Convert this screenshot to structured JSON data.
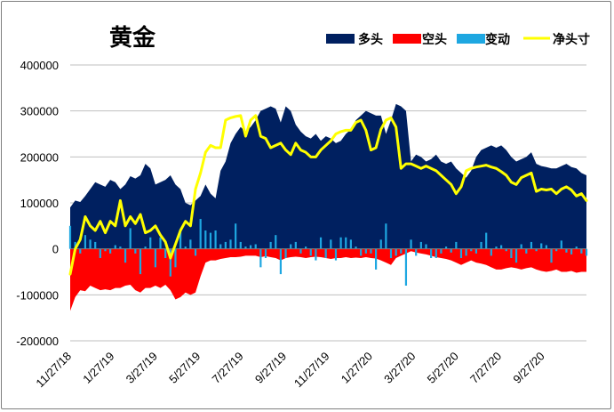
{
  "chart_data": {
    "type": "area",
    "title": "黄金",
    "legend": [
      {
        "name": "多头",
        "color": "#002060"
      },
      {
        "name": "空头",
        "color": "#ff0000"
      },
      {
        "name": "变动",
        "color": "#1ea7e1"
      },
      {
        "name": "净头寸",
        "color": "#ffff00"
      }
    ],
    "legend_placement": "top-right",
    "ylim": [
      -200000,
      400000
    ],
    "yticks": [
      "400000",
      "300000",
      "200000",
      "100000",
      "0",
      "-100000",
      "-200000"
    ],
    "ytick_values": [
      400000,
      300000,
      200000,
      100000,
      0,
      -100000,
      -200000
    ],
    "xticks": [
      "11/27/18",
      "1/27/19",
      "3/27/19",
      "5/27/19",
      "7/27/19",
      "9/27/19",
      "11/27/19",
      "1/27/20",
      "3/27/20",
      "5/27/20",
      "7/27/20",
      "9/27/20"
    ],
    "grid": true,
    "x": [
      "11/27/18",
      "12/4/18",
      "12/11/18",
      "12/18/18",
      "12/25/18",
      "1/1/19",
      "1/8/19",
      "1/15/19",
      "1/22/19",
      "1/29/19",
      "2/5/19",
      "2/12/19",
      "2/19/19",
      "2/26/19",
      "3/5/19",
      "3/12/19",
      "3/19/19",
      "3/26/19",
      "4/2/19",
      "4/9/19",
      "4/16/19",
      "4/23/19",
      "4/30/19",
      "5/7/19",
      "5/14/19",
      "5/21/19",
      "5/28/19",
      "6/4/19",
      "6/11/19",
      "6/18/19",
      "6/25/19",
      "7/2/19",
      "7/9/19",
      "7/16/19",
      "7/23/19",
      "7/30/19",
      "8/6/19",
      "8/13/19",
      "8/20/19",
      "8/27/19",
      "9/3/19",
      "9/10/19",
      "9/17/19",
      "9/24/19",
      "10/1/19",
      "10/8/19",
      "10/15/19",
      "10/22/19",
      "10/29/19",
      "11/5/19",
      "11/12/19",
      "11/19/19",
      "11/26/19",
      "12/3/19",
      "12/10/19",
      "12/17/19",
      "12/24/19",
      "12/31/19",
      "1/7/20",
      "1/14/20",
      "1/21/20",
      "1/28/20",
      "2/4/20",
      "2/11/20",
      "2/18/20",
      "2/25/20",
      "3/3/20",
      "3/10/20",
      "3/17/20",
      "3/24/20",
      "3/31/20",
      "4/7/20",
      "4/14/20",
      "4/21/20",
      "4/28/20",
      "5/5/20",
      "5/12/20",
      "5/19/20",
      "5/26/20",
      "6/2/20",
      "6/9/20",
      "6/16/20",
      "6/23/20",
      "6/30/20",
      "7/7/20",
      "7/14/20",
      "7/21/20",
      "7/28/20",
      "8/4/20",
      "8/11/20",
      "8/18/20",
      "8/25/20",
      "9/1/20",
      "9/8/20",
      "9/15/20",
      "9/22/20",
      "9/29/20",
      "10/6/20",
      "10/13/20",
      "10/20/20",
      "10/27/20",
      "11/3/20",
      "11/10/20",
      "11/17/20"
    ],
    "series": [
      {
        "name": "多头",
        "values": [
          90000,
          105000,
          102000,
          115000,
          130000,
          145000,
          140000,
          135000,
          150000,
          145000,
          130000,
          140000,
          158000,
          153000,
          160000,
          185000,
          175000,
          140000,
          145000,
          150000,
          160000,
          140000,
          130000,
          100000,
          95000,
          105000,
          115000,
          140000,
          120000,
          110000,
          170000,
          190000,
          230000,
          250000,
          265000,
          255000,
          265000,
          280000,
          300000,
          305000,
          310000,
          305000,
          275000,
          310000,
          300000,
          270000,
          255000,
          245000,
          240000,
          250000,
          235000,
          245000,
          240000,
          230000,
          235000,
          250000,
          260000,
          280000,
          290000,
          300000,
          295000,
          290000,
          290000,
          250000,
          280000,
          315000,
          310000,
          300000,
          190000,
          205000,
          200000,
          190000,
          195000,
          205000,
          190000,
          185000,
          190000,
          175000,
          165000,
          155000,
          170000,
          200000,
          215000,
          220000,
          225000,
          220000,
          225000,
          215000,
          200000,
          190000,
          195000,
          200000,
          210000,
          185000,
          180000,
          178000,
          175000,
          175000,
          180000,
          185000,
          178000,
          175000,
          165000,
          160000
        ]
      },
      {
        "name": "空头",
        "values": [
          -135000,
          -105000,
          -90000,
          -92000,
          -80000,
          -85000,
          -90000,
          -88000,
          -90000,
          -85000,
          -85000,
          -80000,
          -78000,
          -90000,
          -95000,
          -85000,
          -85000,
          -80000,
          -85000,
          -78000,
          -90000,
          -110000,
          -105000,
          -95000,
          -100000,
          -95000,
          -60000,
          -30000,
          -25000,
          -25000,
          -22000,
          -20000,
          -18000,
          -18000,
          -17000,
          -15000,
          -15000,
          -15000,
          -18000,
          -16000,
          -18000,
          -20000,
          -25000,
          -20000,
          -18000,
          -17000,
          -18000,
          -20000,
          -18000,
          -17000,
          -18000,
          -20000,
          -22000,
          -20000,
          -20000,
          -18000,
          -20000,
          -19000,
          -20000,
          -18000,
          -20000,
          -21000,
          -25000,
          -30000,
          -35000,
          -20000,
          -15000,
          -10000,
          -5000,
          -8000,
          -10000,
          -12000,
          -15000,
          -18000,
          -20000,
          -22000,
          -25000,
          -30000,
          -35000,
          -30000,
          -25000,
          -30000,
          -32000,
          -35000,
          -40000,
          -45000,
          -45000,
          -42000,
          -40000,
          -42000,
          -45000,
          -42000,
          -40000,
          -45000,
          -48000,
          -50000,
          -48000,
          -45000,
          -50000,
          -50000,
          -48000,
          -52000,
          -50000,
          -50000
        ]
      },
      {
        "name": "变动",
        "values": [
          50000,
          15000,
          -10000,
          30000,
          20000,
          15000,
          -20000,
          -5000,
          -10000,
          8000,
          5000,
          -30000,
          45000,
          -10000,
          -55000,
          5000,
          25000,
          -40000,
          25000,
          -20000,
          -60000,
          -40000,
          40000,
          5000,
          20000,
          -15000,
          65000,
          40000,
          35000,
          40000,
          10000,
          15000,
          20000,
          55000,
          15000,
          5000,
          8000,
          10000,
          -40000,
          -20000,
          15000,
          30000,
          -55000,
          -20000,
          10000,
          15000,
          -10000,
          5000,
          -15000,
          -25000,
          25000,
          -20000,
          20000,
          -25000,
          25000,
          25000,
          20000,
          5000,
          -15000,
          -10000,
          -10000,
          -45000,
          20000,
          55000,
          -20000,
          -15000,
          -10000,
          -80000,
          20000,
          -15000,
          15000,
          10000,
          -20000,
          -20000,
          -10000,
          5000,
          -8000,
          15000,
          -20000,
          -15000,
          -5000,
          -10000,
          15000,
          35000,
          -15000,
          5000,
          8000,
          -5000,
          -20000,
          -30000,
          10000,
          -10000,
          15000,
          -5000,
          12000,
          8000,
          -30000,
          -5000,
          18000,
          -8000,
          -12000,
          5000,
          -10000,
          -15000
        ]
      },
      {
        "name": "净头寸",
        "values": [
          -55000,
          0,
          20000,
          70000,
          50000,
          40000,
          60000,
          35000,
          60000,
          50000,
          105000,
          50000,
          70000,
          55000,
          75000,
          35000,
          40000,
          50000,
          30000,
          15000,
          -20000,
          10000,
          40000,
          60000,
          50000,
          130000,
          165000,
          210000,
          225000,
          220000,
          220000,
          280000,
          285000,
          288000,
          290000,
          245000,
          280000,
          290000,
          245000,
          240000,
          220000,
          225000,
          230000,
          215000,
          205000,
          230000,
          215000,
          210000,
          200000,
          200000,
          215000,
          225000,
          235000,
          250000,
          255000,
          258000,
          258000,
          275000,
          280000,
          258000,
          215000,
          220000,
          260000,
          280000,
          285000,
          265000,
          175000,
          185000,
          185000,
          180000,
          175000,
          180000,
          175000,
          170000,
          160000,
          150000,
          140000,
          120000,
          135000,
          170000,
          175000,
          178000,
          180000,
          182000,
          178000,
          175000,
          168000,
          160000,
          145000,
          140000,
          155000,
          160000,
          165000,
          125000,
          130000,
          128000,
          130000,
          120000,
          130000,
          135000,
          128000,
          115000,
          120000,
          105000
        ]
      }
    ]
  }
}
